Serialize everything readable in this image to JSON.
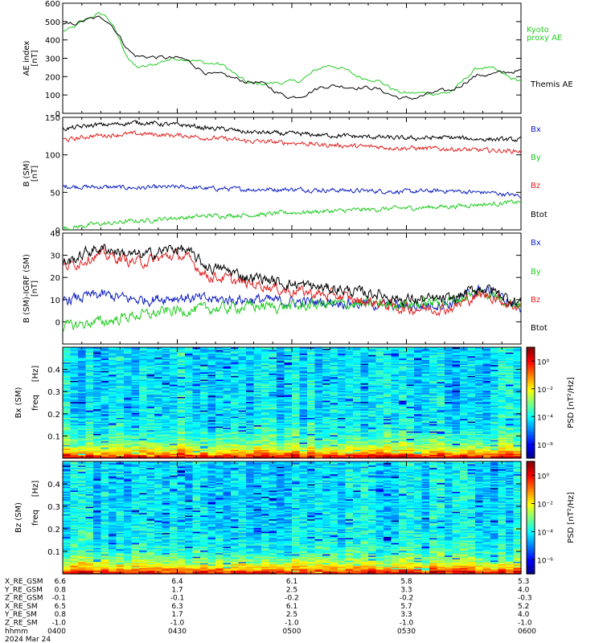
{
  "colors": {
    "black": "#000000",
    "green": "#22cc22",
    "red": "#e02020",
    "blue": "#1020c0"
  },
  "chart_data": [
    {
      "type": "line",
      "ylabel": "AE index",
      "yunit": "[nT]",
      "ylim": [
        0,
        600
      ],
      "yticks": [
        "0",
        "100",
        "200",
        "300",
        "400",
        "500",
        "600"
      ],
      "x": [
        0,
        10,
        20,
        30,
        40,
        50,
        60,
        70,
        80,
        90,
        100,
        110,
        120
      ],
      "series": [
        {
          "name": "Kyoto proxy AE",
          "color": "#22cc22",
          "values": [
            450,
            540,
            250,
            300,
            270,
            160,
            170,
            260,
            190,
            110,
            110,
            250,
            180
          ]
        },
        {
          "name": "Themis AE",
          "color": "#000000",
          "values": [
            480,
            520,
            310,
            300,
            210,
            170,
            90,
            150,
            140,
            80,
            120,
            210,
            230
          ]
        }
      ]
    },
    {
      "type": "line",
      "ylabel": "B (SM)",
      "yunit": "[nT]",
      "ylim": [
        0,
        150
      ],
      "yticks": [
        "0",
        "50",
        "100",
        "150"
      ],
      "x": [
        0,
        10,
        20,
        30,
        40,
        50,
        60,
        70,
        80,
        90,
        100,
        110,
        120
      ],
      "series": [
        {
          "name": "Bx",
          "color": "#1020c0",
          "values": [
            58,
            57,
            56,
            57,
            55,
            54,
            54,
            53,
            52,
            51,
            52,
            50,
            46
          ]
        },
        {
          "name": "By",
          "color": "#22cc22",
          "values": [
            2,
            8,
            12,
            16,
            19,
            20,
            23,
            25,
            27,
            29,
            31,
            34,
            37
          ]
        },
        {
          "name": "Bz",
          "color": "#e02020",
          "values": [
            120,
            126,
            128,
            126,
            122,
            118,
            116,
            113,
            111,
            109,
            108,
            106,
            105
          ]
        },
        {
          "name": "Btot",
          "color": "#000000",
          "values": [
            135,
            140,
            143,
            140,
            135,
            130,
            128,
            126,
            124,
            122,
            123,
            121,
            120
          ]
        }
      ]
    },
    {
      "type": "line",
      "ylabel": "B (SM)-IGRF (SM)",
      "yunit": "[nT]",
      "ylim": [
        -10,
        40
      ],
      "yticks": [
        "0",
        "10",
        "20",
        "30",
        "40"
      ],
      "x": [
        0,
        10,
        20,
        30,
        40,
        50,
        60,
        70,
        80,
        90,
        100,
        110,
        120
      ],
      "series": [
        {
          "name": "Bx",
          "color": "#1020c0",
          "values": [
            10,
            12,
            10,
            11,
            10,
            10,
            9,
            9,
            8,
            7,
            8,
            14,
            7
          ]
        },
        {
          "name": "By",
          "color": "#22cc22",
          "values": [
            -2,
            0,
            3,
            5,
            6,
            7,
            7,
            8,
            8,
            8,
            9,
            13,
            8
          ]
        },
        {
          "name": "Bz",
          "color": "#e02020",
          "values": [
            25,
            30,
            27,
            30,
            20,
            17,
            14,
            12,
            9,
            6,
            6,
            12,
            7
          ]
        },
        {
          "name": "Btot",
          "color": "#000000",
          "values": [
            27,
            33,
            30,
            33,
            24,
            20,
            17,
            15,
            13,
            10,
            10,
            15,
            9
          ]
        }
      ]
    },
    {
      "type": "heatmap",
      "ylabel": "Bx (SM)",
      "ylabel2": "freq",
      "yunit": "[Hz]",
      "ylim": [
        0,
        0.5
      ],
      "yticks": [
        "0.1",
        "0.2",
        "0.3",
        "0.4"
      ],
      "colorbar_label": "PSD [nT²/Hz]",
      "colorbar_ticks": [
        "10⁰",
        "10⁻²",
        "10⁻⁴",
        "10⁻⁶"
      ],
      "log_range": [
        -7,
        1
      ]
    },
    {
      "type": "heatmap",
      "ylabel": "Bz (SM)",
      "ylabel2": "freq",
      "yunit": "[Hz]",
      "ylim": [
        0,
        0.5
      ],
      "yticks": [
        "0.1",
        "0.2",
        "0.3",
        "0.4"
      ],
      "colorbar_label": "PSD [nT²/Hz]",
      "colorbar_ticks": [
        "10⁰",
        "10⁻²",
        "10⁻⁴",
        "10⁻⁶"
      ],
      "log_range": [
        -7,
        1
      ]
    }
  ],
  "legends": {
    "ae_kyoto": "Kyoto\nproxy AE",
    "ae_themis": "Themis AE",
    "b": [
      "Bx",
      "By",
      "Bz",
      "Btot"
    ],
    "db": [
      "Bx",
      "By",
      "Bz",
      "Btot"
    ]
  },
  "ephemeris": {
    "rows": [
      {
        "label": "X_RE_GSM",
        "values": [
          "6.6",
          "6.4",
          "6.1",
          "5.8",
          "5.3"
        ]
      },
      {
        "label": "Y_RE_GSM",
        "values": [
          "0.8",
          "1.7",
          "2.5",
          "3.3",
          "4.0"
        ]
      },
      {
        "label": "Z_RE_GSM",
        "values": [
          "-0.1",
          "-0.1",
          "-0.2",
          "-0.2",
          "-0.3"
        ]
      },
      {
        "label": "X_RE_SM",
        "values": [
          "6.5",
          "6.3",
          "6.1",
          "5.7",
          "5.2"
        ]
      },
      {
        "label": "Y_RE_SM",
        "values": [
          "0.8",
          "1.7",
          "2.5",
          "3.3",
          "4.0"
        ]
      },
      {
        "label": "Z_RE_SM",
        "values": [
          "-1.0",
          "-1.0",
          "-1.0",
          "-1.0",
          "-1.0"
        ]
      },
      {
        "label": "hhmm",
        "values": [
          "0400",
          "0430",
          "0500",
          "0530",
          "0600"
        ]
      }
    ],
    "date": "2024 Mar 24"
  }
}
